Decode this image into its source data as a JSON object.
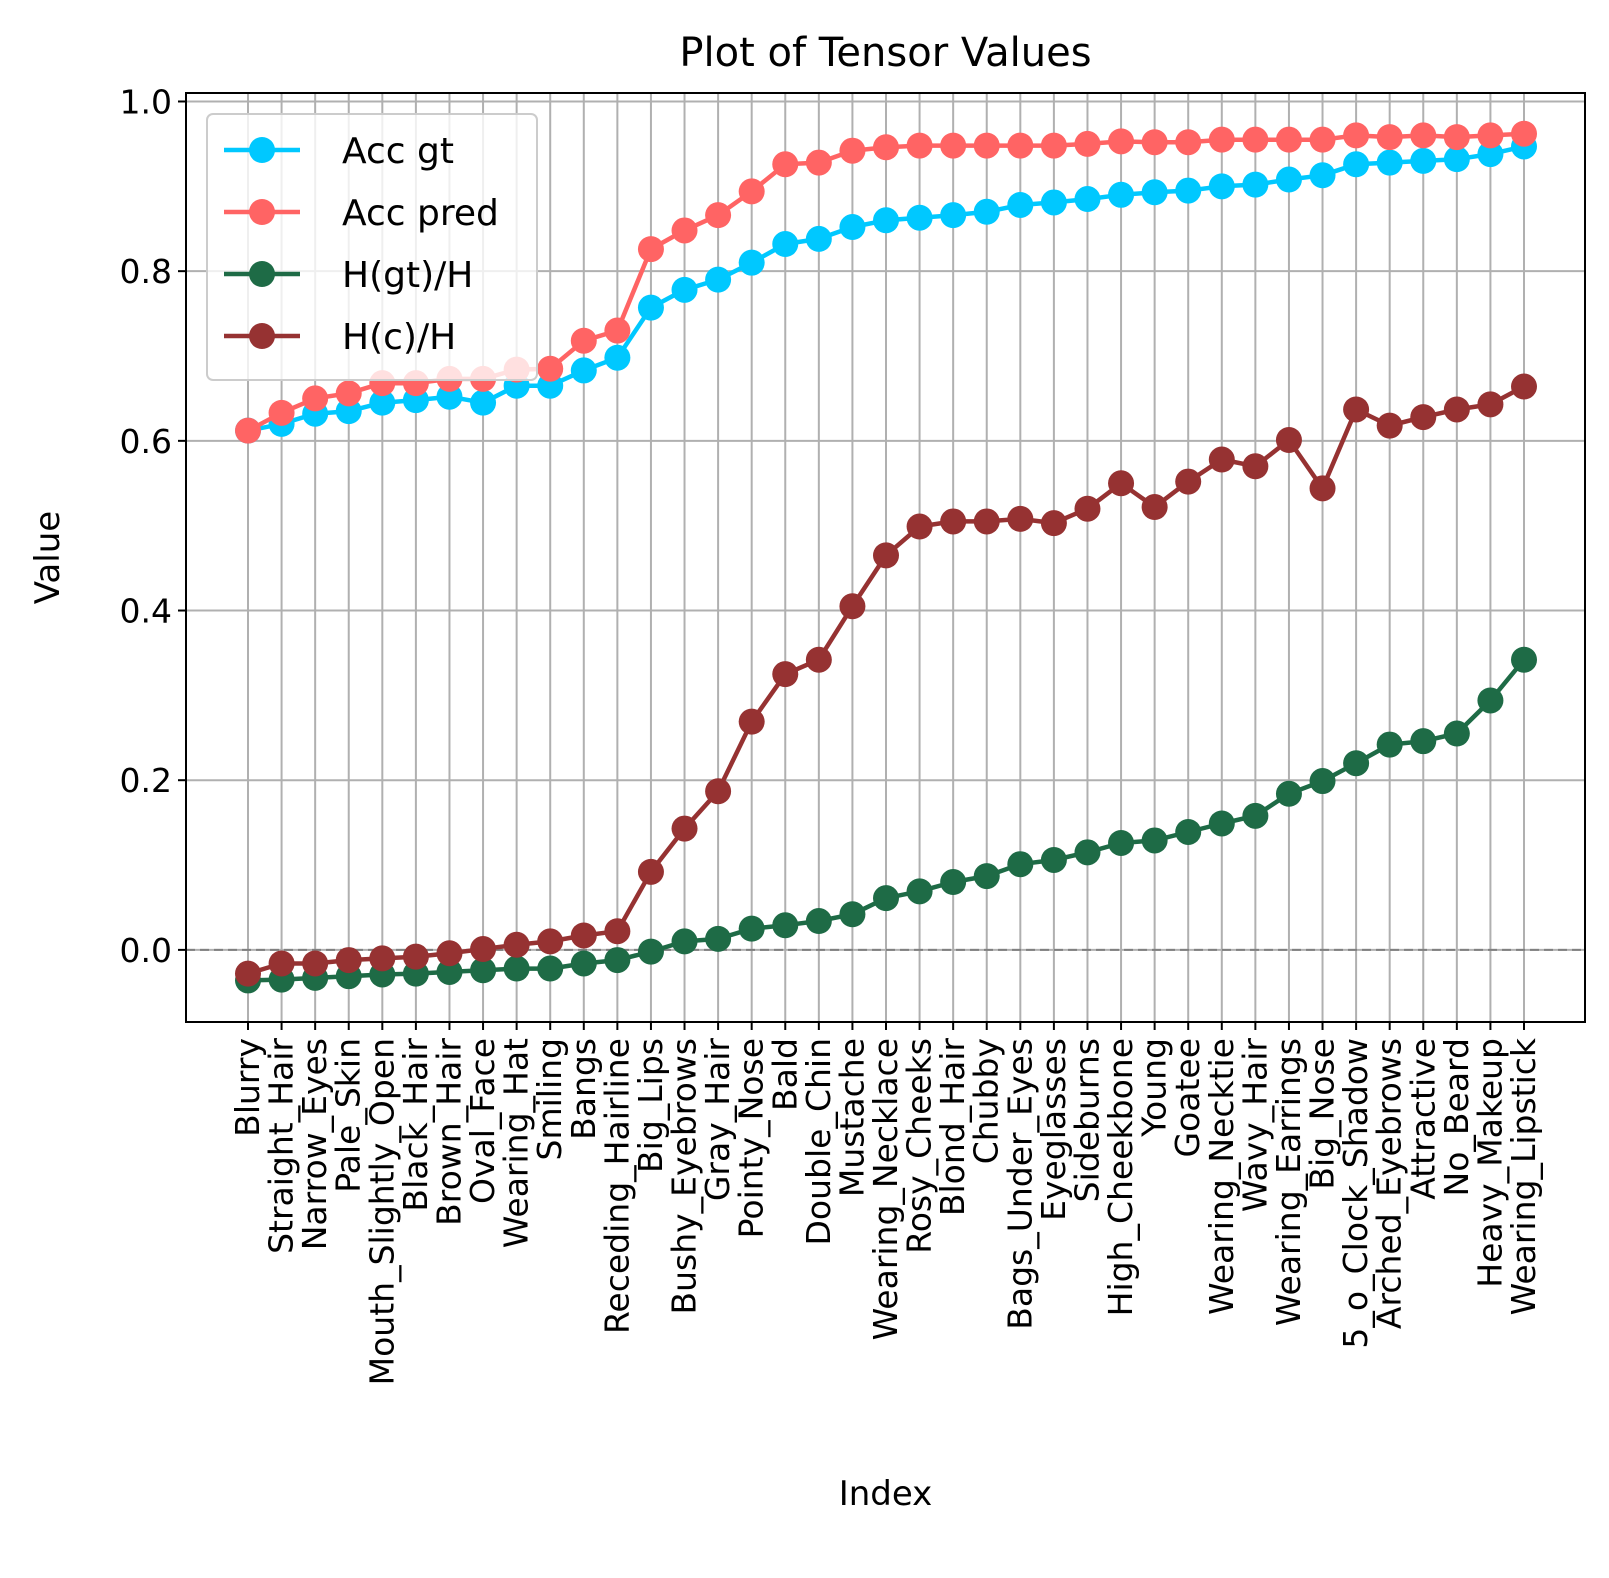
{
  "chart_data": {
    "type": "line",
    "title": "Plot of Tensor Values",
    "xlabel": "Index",
    "ylabel": "Value",
    "ylim": [
      -0.085,
      1.01
    ],
    "yticks": [
      0.0,
      0.2,
      0.4,
      0.6,
      0.8,
      1.0
    ],
    "ytick_labels": [
      "0.0",
      "0.2",
      "0.4",
      "0.6",
      "0.8",
      "1.0"
    ],
    "grid": true,
    "zero_reference_line": true,
    "legend_position": "top-left",
    "categories": [
      "Blurry",
      "Straight_Hair",
      "Narrow_Eyes",
      "Pale_Skin",
      "Mouth_Slightly_Open",
      "Black_Hair",
      "Brown_Hair",
      "Oval_Face",
      "Wearing_Hat",
      "Smiling",
      "Bangs",
      "Receding_Hairline",
      "Big_Lips",
      "Bushy_Eyebrows",
      "Gray_Hair",
      "Pointy_Nose",
      "Bald",
      "Double_Chin",
      "Mustache",
      "Wearing_Necklace",
      "Rosy_Cheeks",
      "Blond_Hair",
      "Chubby",
      "Bags_Under_Eyes",
      "Eyeglasses",
      "Sideburns",
      "High_Cheekbone",
      "Young",
      "Goatee",
      "Wearing_Necktie",
      "Wavy_Hair",
      "Wearing_Earrings",
      "Big_Nose",
      "5_o_Clock_Shadow",
      "Arched_Eyebrows",
      "Attractive",
      "No_Beard",
      "Heavy_Makeup",
      "Wearing_Lipstick"
    ],
    "series": [
      {
        "name": "Acc gt",
        "color": "#00c8ff",
        "values": [
          0.612,
          0.62,
          0.632,
          0.635,
          0.645,
          0.648,
          0.652,
          0.645,
          0.665,
          0.665,
          0.683,
          0.698,
          0.757,
          0.778,
          0.79,
          0.81,
          0.832,
          0.838,
          0.852,
          0.86,
          0.863,
          0.866,
          0.87,
          0.878,
          0.881,
          0.885,
          0.89,
          0.893,
          0.895,
          0.9,
          0.902,
          0.908,
          0.913,
          0.926,
          0.928,
          0.93,
          0.932,
          0.938,
          0.947
        ]
      },
      {
        "name": "Acc pred",
        "color": "#ff6464",
        "values": [
          0.612,
          0.633,
          0.65,
          0.656,
          0.668,
          0.668,
          0.673,
          0.673,
          0.684,
          0.685,
          0.718,
          0.73,
          0.826,
          0.848,
          0.866,
          0.894,
          0.926,
          0.928,
          0.942,
          0.946,
          0.948,
          0.948,
          0.948,
          0.948,
          0.948,
          0.95,
          0.953,
          0.952,
          0.952,
          0.955,
          0.955,
          0.955,
          0.955,
          0.96,
          0.958,
          0.96,
          0.958,
          0.96,
          0.962
        ]
      },
      {
        "name": "H(gt)/H",
        "color": "#1e6b46",
        "values": [
          -0.036,
          -0.035,
          -0.033,
          -0.031,
          -0.029,
          -0.028,
          -0.026,
          -0.024,
          -0.022,
          -0.022,
          -0.016,
          -0.012,
          -0.002,
          0.01,
          0.013,
          0.025,
          0.029,
          0.034,
          0.042,
          0.061,
          0.069,
          0.08,
          0.087,
          0.101,
          0.106,
          0.115,
          0.126,
          0.129,
          0.139,
          0.149,
          0.158,
          0.184,
          0.199,
          0.22,
          0.242,
          0.246,
          0.255,
          0.294,
          0.342
        ]
      },
      {
        "name": "H(c)/H",
        "color": "#963232",
        "values": [
          -0.028,
          -0.016,
          -0.016,
          -0.012,
          -0.01,
          -0.008,
          -0.004,
          0.001,
          0.006,
          0.01,
          0.017,
          0.022,
          0.092,
          0.143,
          0.187,
          0.269,
          0.325,
          0.342,
          0.405,
          0.465,
          0.499,
          0.505,
          0.505,
          0.508,
          0.503,
          0.52,
          0.55,
          0.522,
          0.552,
          0.578,
          0.57,
          0.601,
          0.544,
          0.637,
          0.618,
          0.628,
          0.637,
          0.643,
          0.664
        ]
      }
    ]
  }
}
